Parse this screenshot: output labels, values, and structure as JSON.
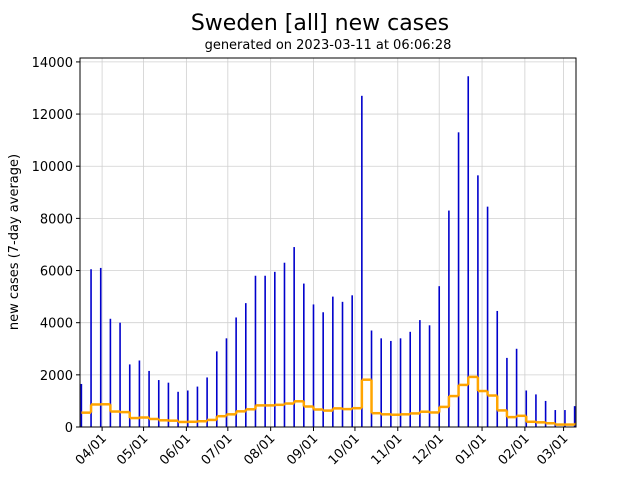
{
  "chart_data": {
    "type": "bar",
    "title": "Sweden [all] new cases",
    "subtitle": "generated on 2023-03-11 at 06:06:28",
    "y_label": "new cases (7-day average)",
    "x": [
      1,
      8,
      15,
      22,
      29,
      36,
      43,
      50,
      57,
      64,
      71,
      78,
      85,
      92,
      99,
      106,
      113,
      120,
      127,
      134,
      141,
      148,
      155,
      162,
      169,
      176,
      183,
      190,
      197,
      204,
      211,
      218,
      225,
      232,
      239,
      246,
      253,
      260,
      267,
      274,
      281,
      288,
      295,
      302,
      309,
      316,
      323,
      330,
      337,
      344,
      351,
      358
    ],
    "series": [
      {
        "name": "new cases",
        "type": "bar",
        "color": "#0000cc",
        "values": [
          1650,
          6050,
          6100,
          4150,
          4000,
          2400,
          2550,
          2150,
          1800,
          1700,
          1350,
          1400,
          1550,
          1900,
          2900,
          3400,
          4200,
          4750,
          5800,
          5800,
          5950,
          6300,
          6900,
          5500,
          4700,
          4400,
          5000,
          4800,
          5050,
          12700,
          3700,
          3400,
          3300,
          3400,
          3650,
          4100,
          3900,
          5400,
          8300,
          11300,
          13450,
          9650,
          8450,
          4450,
          2650,
          3000,
          1400,
          1250,
          1000,
          650,
          650,
          800
        ]
      },
      {
        "name": "7-day average",
        "type": "step",
        "color": "#ffa500",
        "values": [
          550,
          864,
          871,
          593,
          571,
          343,
          364,
          307,
          257,
          243,
          193,
          200,
          221,
          271,
          414,
          486,
          600,
          679,
          829,
          829,
          850,
          900,
          986,
          786,
          671,
          629,
          714,
          686,
          721,
          1814,
          529,
          486,
          471,
          486,
          521,
          586,
          557,
          771,
          1186,
          1614,
          1921,
          1379,
          1207,
          636,
          379,
          429,
          200,
          179,
          143,
          93,
          93,
          114
        ]
      }
    ],
    "xlim": [
      0,
      359
    ],
    "xticks": [
      {
        "value": 16,
        "label": "04/01"
      },
      {
        "value": 46,
        "label": "05/01"
      },
      {
        "value": 77,
        "label": "06/01"
      },
      {
        "value": 107,
        "label": "07/01"
      },
      {
        "value": 138,
        "label": "08/01"
      },
      {
        "value": 169,
        "label": "09/01"
      },
      {
        "value": 199,
        "label": "10/01"
      },
      {
        "value": 230,
        "label": "11/01"
      },
      {
        "value": 260,
        "label": "12/01"
      },
      {
        "value": 291,
        "label": "01/01"
      },
      {
        "value": 322,
        "label": "02/01"
      },
      {
        "value": 350,
        "label": "03/01"
      }
    ],
    "ylim": [
      0,
      14150
    ],
    "yticks": [
      0,
      2000,
      4000,
      6000,
      8000,
      10000,
      12000,
      14000
    ],
    "grid": true
  }
}
